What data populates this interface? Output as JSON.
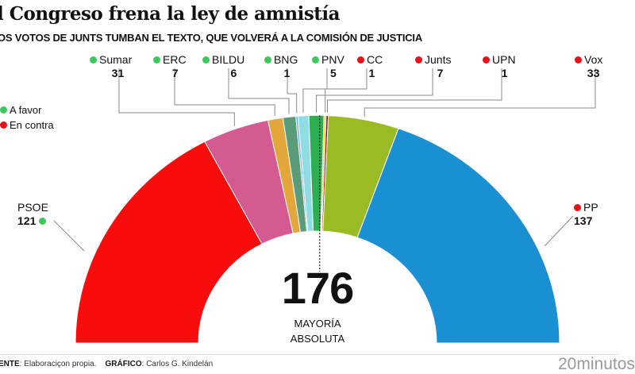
{
  "header": {
    "title": "l Congreso frena la ley de amnistía",
    "subtitle": "OS VOTOS DE JUNTS TUMBAN EL TEXTO, QUE VOLVERÁ A LA COMISIÓN DE JUSTICIA"
  },
  "legend": {
    "favor": "A favor",
    "contra": "En contra",
    "favor_color": "#3cc85a",
    "contra_color": "#e8101a"
  },
  "chart_data": {
    "type": "pie",
    "subtype": "parliament-semicircle",
    "title": "l Congreso frena la ley de amnistía",
    "total_seats": 350,
    "majority": "176",
    "majority_label_1": "MAYORÍA",
    "majority_label_2": "ABSOLUTA",
    "series": [
      {
        "name": "PSOE",
        "value": 121,
        "vote": "favor",
        "color": "#f80c0c"
      },
      {
        "name": "Sumar",
        "value": 31,
        "vote": "favor",
        "color": "#d65a92"
      },
      {
        "name": "ERC",
        "value": 7,
        "vote": "favor",
        "color": "#e2a63a"
      },
      {
        "name": "BILDU",
        "value": 6,
        "vote": "favor",
        "color": "#5b9c78"
      },
      {
        "name": "BNG",
        "value": 1,
        "vote": "favor",
        "color": "#6cb2e6"
      },
      {
        "name": "PNV",
        "value": 5,
        "vote": "favor",
        "color": "#8fdde2"
      },
      {
        "name": "Junts",
        "value": 7,
        "vote": "contra",
        "color": "#2eae52"
      },
      {
        "name": "CC",
        "value": 1,
        "vote": "contra",
        "color": "#f3d24a"
      },
      {
        "name": "UPN",
        "value": 1,
        "vote": "contra",
        "color": "#8c1010"
      },
      {
        "name": "Vox",
        "value": 33,
        "vote": "contra",
        "color": "#9bbb24"
      },
      {
        "name": "PP",
        "value": 137,
        "vote": "contra",
        "color": "#1a8fd2"
      }
    ]
  },
  "footer": {
    "source_label": "ENTE",
    "source": ": Elaboraciçon propia.",
    "graphic_label": "GRÁFICO",
    "graphic": ": Carlos G. Kindelán",
    "brand": "20minutos"
  }
}
